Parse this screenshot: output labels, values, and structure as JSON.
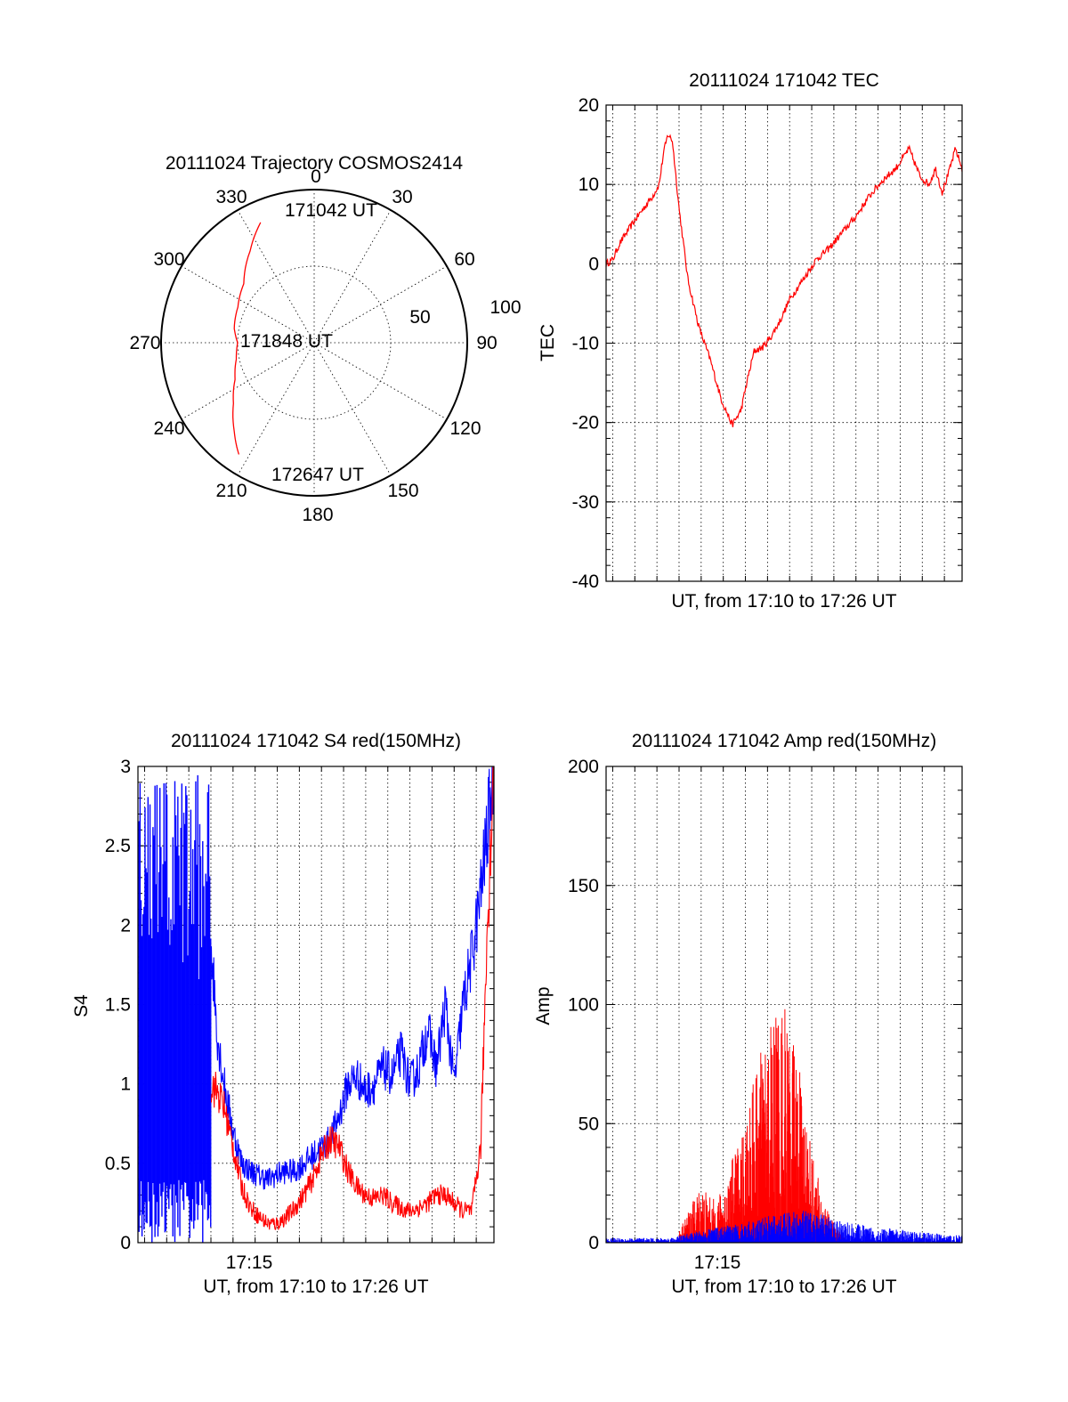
{
  "colors": {
    "red": "#ff0000",
    "blue": "#0000ff",
    "axes": "#000000"
  },
  "chart_data": [
    {
      "id": "trajectory",
      "type": "polar",
      "title": "20111024 Trajectory COSMOS2414",
      "azimuth_labels": [
        "0",
        "30",
        "60",
        "90",
        "120",
        "150",
        "180",
        "210",
        "240",
        "270",
        "300",
        "330"
      ],
      "radius_labels": [
        "50",
        "100"
      ],
      "radius_range": [
        0,
        100
      ],
      "annotations": [
        "171042 UT",
        "171848 UT",
        "172647 UT"
      ],
      "trajectory": {
        "azimuth_deg": [
          336,
          325,
          310,
          295,
          280,
          270,
          258,
          245,
          233,
          222,
          214
        ],
        "radius": [
          86,
          73,
          60,
          55,
          53,
          50,
          52,
          57,
          66,
          78,
          88
        ]
      },
      "grid": true
    },
    {
      "id": "tec",
      "type": "line",
      "title": "20111024 171042 TEC",
      "xlabel": "UT, from 17:10 to 17:26 UT",
      "ylabel": "TEC",
      "xlim_min": [
        10.7,
        26.8
      ],
      "ylim": [
        -40,
        20
      ],
      "yticks": [
        "20",
        "10",
        "0",
        "-10",
        "-20",
        "-30",
        "-40"
      ],
      "x_minutes": [
        10.7,
        11.0,
        11.3,
        11.6,
        12.0,
        12.4,
        12.8,
        13.1,
        13.3,
        13.5,
        13.7,
        14.0,
        14.4,
        14.9,
        15.4,
        15.9,
        16.4,
        16.8,
        17.1,
        17.4,
        17.8,
        18.2,
        18.6,
        19.0,
        19.6,
        20.2,
        20.8,
        21.4,
        22.0,
        22.6,
        23.2,
        23.8,
        24.4,
        24.9,
        25.3,
        25.6,
        25.9,
        26.2,
        26.5,
        26.8
      ],
      "y_values": [
        0,
        0.5,
        2.5,
        3.8,
        5.5,
        7,
        8.5,
        10,
        14,
        16.3,
        15.5,
        7,
        -2,
        -8,
        -12,
        -17,
        -20.3,
        -18.5,
        -14.5,
        -11,
        -10.5,
        -9,
        -7,
        -4.5,
        -2,
        0.5,
        2,
        4,
        6,
        8.5,
        10.5,
        12,
        14.5,
        11,
        10,
        12,
        9,
        11.5,
        14.5,
        12
      ],
      "series_color": "red",
      "grid": true
    },
    {
      "id": "s4",
      "type": "line",
      "title": "20111024 171042 S4 red(150MHz)",
      "xlabel": "UT, from 17:10 to 17:26 UT",
      "ylabel": "S4",
      "xtick_label": "17:15",
      "xlim_min": [
        10.7,
        26.8
      ],
      "ylim": [
        0,
        3
      ],
      "yticks": [
        "3",
        "2.5",
        "2",
        "1.5",
        "1",
        "0.5",
        "0"
      ],
      "series": [
        {
          "color": "blue",
          "x_minutes": [
            14.0,
            14.3,
            14.6,
            15.0,
            15.4,
            15.8,
            16.2,
            16.6,
            17.0,
            17.4,
            17.8,
            18.2,
            18.6,
            19.0,
            19.4,
            19.8,
            20.2,
            20.6,
            21.0,
            21.4,
            21.8,
            22.2,
            22.6,
            23.0,
            23.4,
            23.8,
            24.2,
            24.6,
            25.0,
            25.4,
            25.8,
            26.2,
            26.5,
            26.8
          ],
          "y_values": [
            1.9,
            1.3,
            1.0,
            0.7,
            0.5,
            0.45,
            0.42,
            0.4,
            0.43,
            0.45,
            0.45,
            0.5,
            0.55,
            0.6,
            0.65,
            0.8,
            1.0,
            1.05,
            0.95,
            1.0,
            1.1,
            1.05,
            1.2,
            1.0,
            1.1,
            1.35,
            1.1,
            1.5,
            1.0,
            1.5,
            1.8,
            2.2,
            2.6,
            3.0
          ]
        },
        {
          "color": "red",
          "x_minutes": [
            14.0,
            14.3,
            14.6,
            15.0,
            15.4,
            15.8,
            16.2,
            16.6,
            17.0,
            17.4,
            17.8,
            18.2,
            18.6,
            19.0,
            19.4,
            19.8,
            20.2,
            20.6,
            21.0,
            21.4,
            21.8,
            22.2,
            22.6,
            23.0,
            23.4,
            23.8,
            24.2,
            24.6,
            25.0,
            25.4,
            25.8,
            26.2,
            26.5,
            26.8
          ],
          "y_values": [
            1.0,
            0.95,
            0.85,
            0.6,
            0.35,
            0.22,
            0.16,
            0.12,
            0.12,
            0.16,
            0.22,
            0.3,
            0.4,
            0.55,
            0.65,
            0.6,
            0.45,
            0.35,
            0.3,
            0.28,
            0.3,
            0.25,
            0.22,
            0.2,
            0.22,
            0.25,
            0.3,
            0.3,
            0.25,
            0.2,
            0.2,
            0.6,
            2.0,
            3.0
          ]
        }
      ],
      "noisy_start": {
        "color": "blue",
        "x_minutes": [
          10.7,
          14.0
        ],
        "y_range": [
          0,
          3
        ]
      },
      "grid": true
    },
    {
      "id": "amp",
      "type": "line",
      "title": "20111024 171042 Amp red(150MHz)",
      "xlabel": "UT, from 17:10 to 17:26 UT",
      "ylabel": "Amp",
      "xtick_label": "17:15",
      "xlim_min": [
        10.7,
        26.8
      ],
      "ylim": [
        0,
        200
      ],
      "yticks": [
        "200",
        "150",
        "100",
        "50",
        "0"
      ],
      "series": [
        {
          "color": "red",
          "x_minutes": [
            14.0,
            14.5,
            15.0,
            15.5,
            16.0,
            16.5,
            17.0,
            17.5,
            18.0,
            18.5,
            19.0,
            19.5,
            20.0,
            20.5,
            21.0,
            21.5
          ],
          "envelope": [
            5,
            15,
            25,
            18,
            22,
            38,
            55,
            75,
            90,
            105,
            95,
            70,
            40,
            18,
            8,
            2
          ]
        },
        {
          "color": "blue",
          "x_minutes": [
            10.7,
            12.0,
            13.5,
            14.5,
            15.5,
            16.5,
            17.5,
            18.5,
            19.5,
            20.5,
            21.5,
            22.5,
            23.5,
            24.5,
            25.5,
            26.8
          ],
          "envelope": [
            2,
            2,
            2,
            4,
            6,
            8,
            10,
            12,
            14,
            12,
            9,
            7,
            6,
            5,
            4,
            3
          ]
        }
      ],
      "grid": true
    }
  ]
}
